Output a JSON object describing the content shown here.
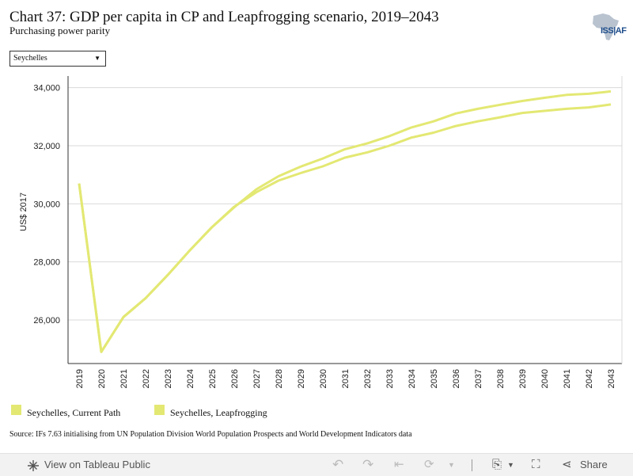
{
  "header": {
    "title": "Chart 37: GDP per capita in CP and Leapfrogging scenario, 2019–2043",
    "subtitle": "Purchasing power parity",
    "logo_text": "ISS|AF"
  },
  "filter": {
    "selected": "Seychelles"
  },
  "colors": {
    "series_current": "#e3e873",
    "series_leap": "#e3e873",
    "grid": "#d9d9d9",
    "axis": "#333333"
  },
  "chart_data": {
    "type": "line",
    "x": [
      2019,
      2020,
      2021,
      2022,
      2023,
      2024,
      2025,
      2026,
      2027,
      2028,
      2029,
      2030,
      2031,
      2032,
      2033,
      2034,
      2035,
      2036,
      2037,
      2038,
      2039,
      2040,
      2041,
      2042,
      2043
    ],
    "x_tick_labels": [
      "2019",
      "2020",
      "2021",
      "2022",
      "2023",
      "2024",
      "2025",
      "2026",
      "2027",
      "2028",
      "2029",
      "2030",
      "2031",
      "2032",
      "2033",
      "2034",
      "2035",
      "2036",
      "2037",
      "2038",
      "2039",
      "2040",
      "2041",
      "2042",
      "2043"
    ],
    "series": [
      {
        "name": "Seychelles, Current Path",
        "values": [
          30700,
          24900,
          26100,
          26750,
          27550,
          28400,
          29200,
          29900,
          30400,
          30800,
          31060,
          31290,
          31590,
          31770,
          32000,
          32280,
          32450,
          32680,
          32840,
          32980,
          33130,
          33200,
          33270,
          33320,
          33420
        ]
      },
      {
        "name": "Seychelles, Leapfrogging",
        "values": [
          30700,
          24900,
          26100,
          26750,
          27550,
          28400,
          29200,
          29880,
          30500,
          30950,
          31280,
          31560,
          31880,
          32080,
          32330,
          32630,
          32840,
          33110,
          33270,
          33410,
          33540,
          33650,
          33750,
          33790,
          33870
        ]
      }
    ],
    "ylabel": "US$ 2017",
    "xlabel": "",
    "ylim": [
      24500,
      34400
    ],
    "y_ticks": [
      26000,
      28000,
      30000,
      32000,
      34000
    ],
    "y_tick_labels": [
      "26,000",
      "28,000",
      "30,000",
      "32,000",
      "34,000"
    ],
    "grid": true,
    "legend_position": "bottom-left"
  },
  "source": "Source: IFs 7.63 initialising from UN Population Division World Population Prospects and World Development Indicators data",
  "toolbar": {
    "view_label": "View on Tableau Public",
    "share_label": "Share"
  }
}
